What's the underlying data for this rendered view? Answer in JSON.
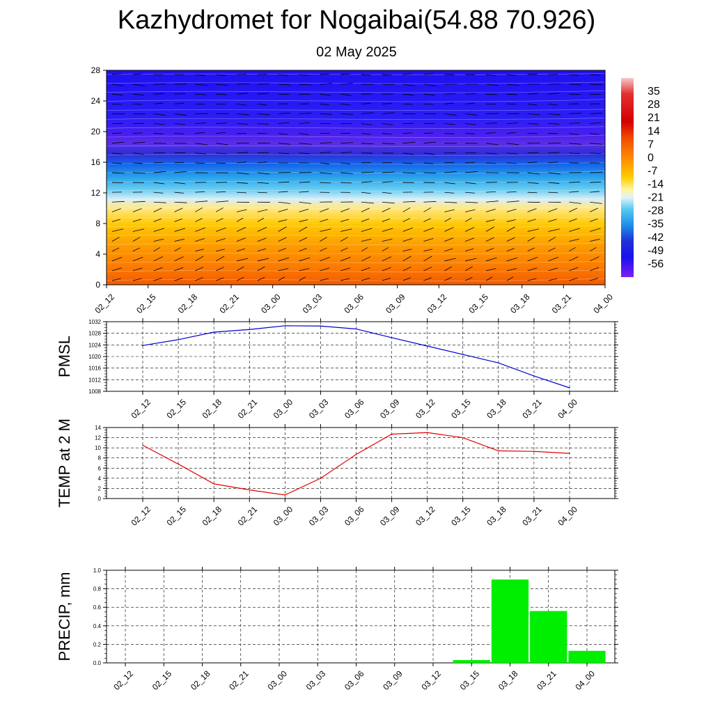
{
  "header": {
    "title": "Kazhydromet for Nogaibai(54.88 70.926)",
    "subtitle": "02 May 2025"
  },
  "colors": {
    "pmsl_line": "#0000cc",
    "temp_line": "#e00000",
    "precip_bar": "#00ee00",
    "grid": "#000000"
  },
  "chart_data": [
    {
      "type": "heatmap",
      "title": "",
      "x_ticks": [
        "02_12",
        "02_15",
        "02_18",
        "02_21",
        "03_00",
        "03_03",
        "03_06",
        "03_09",
        "03_12",
        "03_15",
        "03_18",
        "03_21",
        "04_00"
      ],
      "y_ticks": [
        "0",
        "4",
        "8",
        "12",
        "16",
        "20",
        "24",
        "28"
      ],
      "ylim": [
        0,
        28
      ],
      "colorbar_labels": [
        "35",
        "28",
        "21",
        "14",
        "7",
        "0",
        "-7",
        "-14",
        "-21",
        "-28",
        "-35",
        "-42",
        "-49",
        "-56"
      ],
      "colorbar_range": [
        -63,
        42
      ],
      "overlay": "wind barbs",
      "grid": false
    },
    {
      "type": "line",
      "ylabel": "PMSL",
      "categories": [
        "02_12",
        "02_15",
        "02_18",
        "02_21",
        "03_00",
        "03_03",
        "03_06",
        "03_09",
        "03_12",
        "03_15",
        "03_18",
        "03_21",
        "04_00"
      ],
      "values": [
        1023.8,
        1025.8,
        1028.4,
        1029.3,
        1030.6,
        1030.5,
        1029.5,
        1026.5,
        1023.6,
        1020.7,
        1017.8,
        1013.3,
        1009.2
      ],
      "y_ticks": [
        "1008",
        "1012",
        "1016",
        "1020",
        "1024",
        "1028",
        "1032"
      ],
      "ylim": [
        1008,
        1032
      ],
      "grid": true
    },
    {
      "type": "line",
      "ylabel": "TEMP at 2 M",
      "categories": [
        "02_12",
        "02_15",
        "02_18",
        "02_21",
        "03_00",
        "03_03",
        "03_06",
        "03_09",
        "03_12",
        "03_15",
        "03_18",
        "03_21",
        "04_00"
      ],
      "values": [
        10.5,
        6.8,
        2.9,
        1.7,
        0.7,
        4.0,
        8.7,
        12.7,
        13.0,
        12.0,
        9.4,
        9.3,
        8.9
      ],
      "y_ticks": [
        "0",
        "2",
        "4",
        "6",
        "8",
        "10",
        "12",
        "14"
      ],
      "ylim": [
        0,
        14
      ],
      "grid": true
    },
    {
      "type": "bar",
      "ylabel": "PRECIP, mm",
      "categories": [
        "02_12",
        "02_15",
        "02_18",
        "02_21",
        "03_00",
        "03_03",
        "03_06",
        "03_09",
        "03_12",
        "03_15",
        "03_18",
        "03_21",
        "04_00"
      ],
      "values": [
        0,
        0,
        0,
        0,
        0,
        0,
        0,
        0,
        0,
        0.03,
        0.9,
        0.56,
        0.13
      ],
      "y_ticks": [
        "0.0",
        "0.2",
        "0.4",
        "0.6",
        "0.8",
        "1.0"
      ],
      "ylim": [
        0,
        1.0
      ],
      "grid": true
    }
  ]
}
